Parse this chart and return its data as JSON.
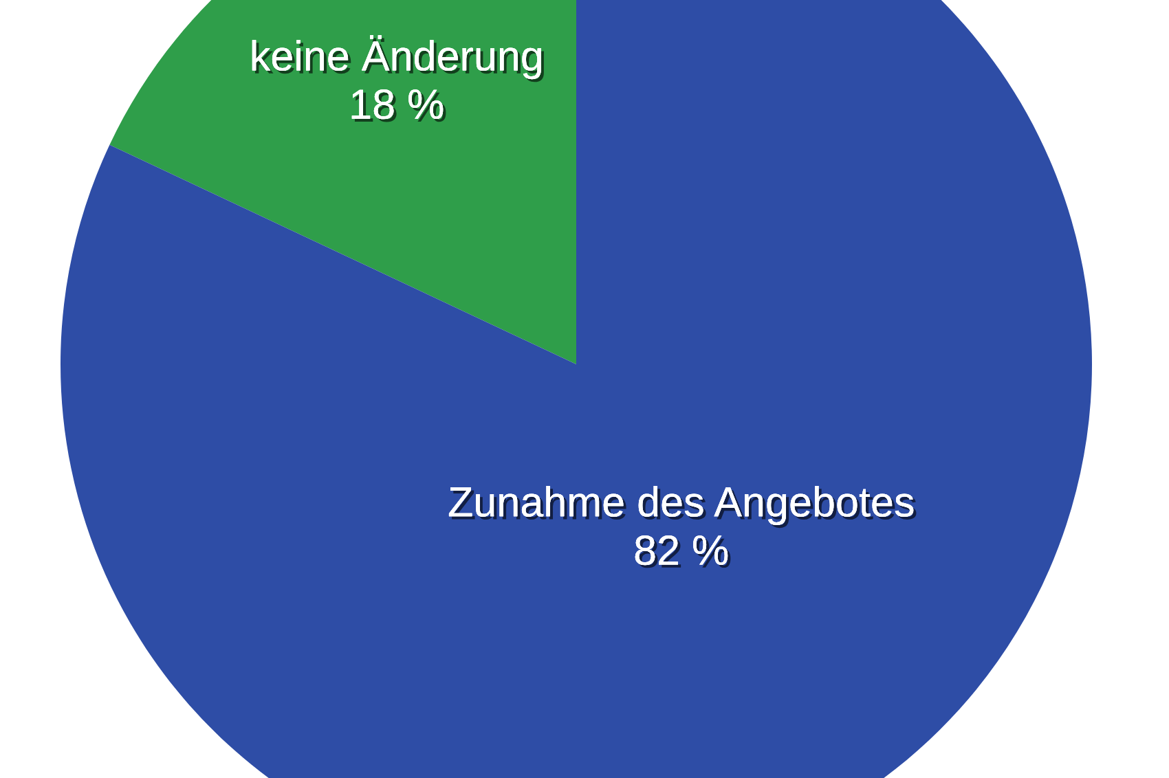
{
  "chart_data": {
    "type": "pie",
    "categories": [
      "keine Änderung",
      "Zunahme des Angebotes"
    ],
    "values": [
      18,
      82
    ],
    "colors": [
      "#2f9e4a",
      "#2e4da6"
    ],
    "value_labels": [
      "18 %",
      "82 %"
    ]
  }
}
